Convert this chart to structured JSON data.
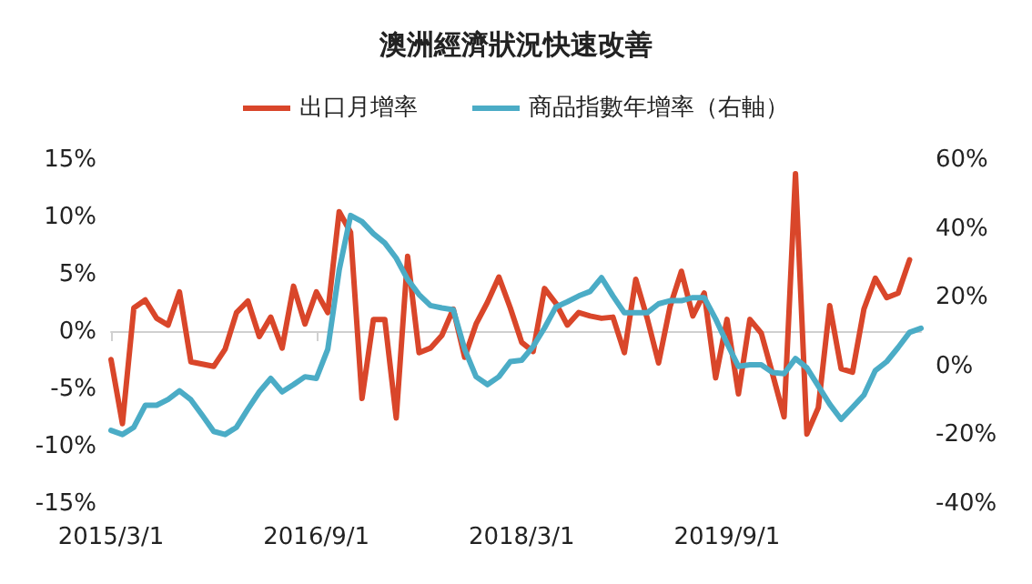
{
  "chart_data": {
    "type": "line",
    "title": "澳洲經濟狀況快速改善",
    "categories": [
      "2015/3/1",
      null,
      null,
      null,
      null,
      null,
      null,
      null,
      null,
      null,
      null,
      null,
      null,
      null,
      null,
      null,
      null,
      null,
      "2016/9/1",
      null,
      null,
      null,
      null,
      null,
      null,
      null,
      null,
      null,
      null,
      null,
      null,
      null,
      null,
      null,
      null,
      null,
      "2018/3/1",
      null,
      null,
      null,
      null,
      null,
      null,
      null,
      null,
      null,
      null,
      null,
      null,
      null,
      null,
      null,
      null,
      null,
      "2019/9/1",
      null,
      null,
      null,
      null,
      null,
      null,
      null,
      null,
      null,
      null,
      null,
      null,
      null,
      null,
      null,
      null,
      null
    ],
    "series": [
      {
        "name": "出口月增率",
        "color": "#d9462a",
        "values": [
          -2.4,
          -8.0,
          2.1,
          2.8,
          1.2,
          0.6,
          3.5,
          -2.6,
          -2.8,
          -3.0,
          -1.5,
          1.7,
          2.7,
          -0.4,
          1.3,
          -1.4,
          4.0,
          0.7,
          3.5,
          1.7,
          10.5,
          8.7,
          -5.8,
          1.1,
          1.1,
          -7.5,
          6.6,
          -1.8,
          -1.4,
          -0.3,
          2.0,
          -2.2,
          0.7,
          2.6,
          4.8,
          2.1,
          -0.9,
          -1.7,
          3.8,
          2.5,
          0.6,
          1.7,
          1.4,
          1.2,
          1.3,
          -1.8,
          4.6,
          1.2,
          -2.7,
          2.2,
          5.3,
          1.4,
          3.4,
          -4.0,
          1.1,
          -5.4,
          1.1,
          -0.1,
          -3.7,
          -7.4,
          13.8,
          -8.9,
          -6.6,
          2.3,
          -3.2,
          -3.5,
          2.0,
          4.7,
          3.0,
          3.4,
          6.3,
          null
        ]
      },
      {
        "name": "商品指數年增率（右軸）",
        "color": "#4bacc6",
        "axis": "y2",
        "values": [
          -18.6,
          -19.8,
          -17.7,
          -11.3,
          -11.3,
          -9.6,
          -7.1,
          -9.7,
          -14.2,
          -18.9,
          -19.8,
          -17.7,
          -12.4,
          -7.4,
          -3.5,
          -7.4,
          -5.3,
          -3.0,
          -3.5,
          5.0,
          28.0,
          43.9,
          42.1,
          38.6,
          35.9,
          31.5,
          25.3,
          20.9,
          17.7,
          17.0,
          16.5,
          5.0,
          -3.0,
          -5.3,
          -3.0,
          1.4,
          1.8,
          5.8,
          11.2,
          17.3,
          18.8,
          20.5,
          21.8,
          25.8,
          20.5,
          15.6,
          15.6,
          15.6,
          18.2,
          19.1,
          19.1,
          20.0,
          20.0,
          13.8,
          6.7,
          0.0,
          0.5,
          0.5,
          -1.8,
          -2.1,
          2.3,
          -0.4,
          -5.7,
          -11.0,
          -15.4,
          -11.9,
          -8.3,
          -1.2,
          1.4,
          5.5,
          9.9,
          11.1
        ]
      }
    ],
    "ylim": [
      -15,
      15
    ],
    "yticks": [
      {
        "value": -15,
        "label": "-15%"
      },
      {
        "value": -10,
        "label": "-10%"
      },
      {
        "value": -5,
        "label": "-5%"
      },
      {
        "value": 0,
        "label": "0%"
      },
      {
        "value": 5,
        "label": "5%"
      },
      {
        "value": 10,
        "label": "10%"
      },
      {
        "value": 15,
        "label": "15%"
      }
    ],
    "y2lim": [
      -40,
      60
    ],
    "y2ticks": [
      {
        "value": -40,
        "label": "-40%"
      },
      {
        "value": -20,
        "label": "-20%"
      },
      {
        "value": 0,
        "label": "0%"
      },
      {
        "value": 20,
        "label": "20%"
      },
      {
        "value": 40,
        "label": "40%"
      },
      {
        "value": 60,
        "label": "60%"
      }
    ],
    "legend": "top",
    "marker": "none",
    "line_style": "solid"
  }
}
